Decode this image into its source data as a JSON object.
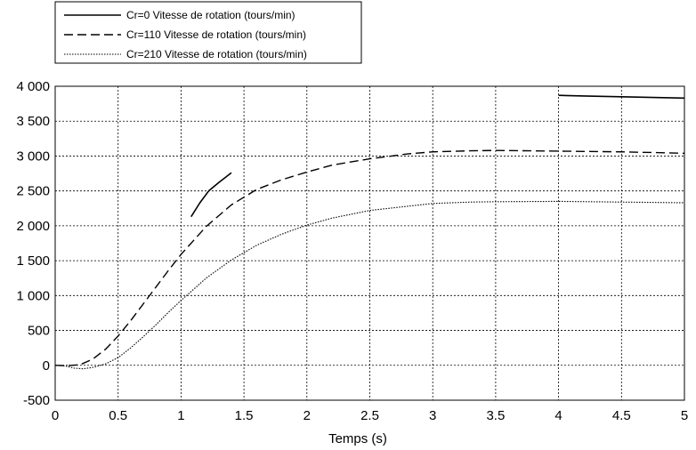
{
  "chart_data": {
    "type": "line",
    "title": "",
    "xlabel": "Temps (s)",
    "ylabel": "",
    "xlim": [
      0,
      5
    ],
    "ylim": [
      -500,
      4000
    ],
    "x_ticks": [
      0,
      0.5,
      1,
      1.5,
      2,
      2.5,
      3,
      3.5,
      4,
      4.5,
      5
    ],
    "x_tick_labels": [
      "0",
      "0.5",
      "1",
      "1.5",
      "2",
      "2.5",
      "3",
      "3.5",
      "4",
      "4.5",
      "5"
    ],
    "y_ticks": [
      -500,
      0,
      500,
      1000,
      1500,
      2000,
      2500,
      3000,
      3500,
      4000
    ],
    "y_tick_labels": [
      "-500",
      "0",
      "500",
      "1 000",
      "1 500",
      "2 000",
      "2 500",
      "3 000",
      "3 500",
      "4 000"
    ],
    "grid": true,
    "legend_position": "top-left outside",
    "series": [
      {
        "name": "Cr=0 Vitesse de rotation (tours/min)",
        "style": "solid",
        "color": "#000000",
        "segments": [
          [
            [
              1.08,
              2130
            ],
            [
              1.15,
              2330
            ],
            [
              1.22,
              2500
            ],
            [
              1.3,
              2620
            ],
            [
              1.4,
              2760
            ]
          ],
          [
            [
              4.0,
              3870
            ],
            [
              4.2,
              3860
            ],
            [
              4.5,
              3850
            ],
            [
              4.75,
              3840
            ],
            [
              5.0,
              3830
            ]
          ]
        ]
      },
      {
        "name": "Cr=110 Vitesse de rotation (tours/min)",
        "style": "dashed",
        "color": "#000000",
        "segments": [
          [
            [
              0.0,
              0
            ],
            [
              0.1,
              -5
            ],
            [
              0.2,
              10
            ],
            [
              0.3,
              90
            ],
            [
              0.4,
              230
            ],
            [
              0.5,
              420
            ],
            [
              0.6,
              640
            ],
            [
              0.7,
              880
            ],
            [
              0.8,
              1120
            ],
            [
              0.9,
              1360
            ],
            [
              1.0,
              1590
            ],
            [
              1.2,
              1990
            ],
            [
              1.4,
              2300
            ],
            [
              1.6,
              2520
            ],
            [
              1.8,
              2660
            ],
            [
              2.0,
              2770
            ],
            [
              2.2,
              2870
            ],
            [
              2.5,
              2960
            ],
            [
              2.8,
              3030
            ],
            [
              3.0,
              3060
            ],
            [
              3.3,
              3075
            ],
            [
              3.5,
              3080
            ],
            [
              4.0,
              3070
            ],
            [
              4.5,
              3060
            ],
            [
              5.0,
              3040
            ]
          ]
        ]
      },
      {
        "name": "Cr=210 Vitesse de rotation (tours/min)",
        "style": "dotted",
        "color": "#000000",
        "segments": [
          [
            [
              0.0,
              0
            ],
            [
              0.08,
              -10
            ],
            [
              0.15,
              -40
            ],
            [
              0.22,
              -50
            ],
            [
              0.3,
              -30
            ],
            [
              0.4,
              20
            ],
            [
              0.5,
              110
            ],
            [
              0.6,
              250
            ],
            [
              0.7,
              410
            ],
            [
              0.8,
              580
            ],
            [
              0.9,
              760
            ],
            [
              1.0,
              930
            ],
            [
              1.2,
              1250
            ],
            [
              1.4,
              1510
            ],
            [
              1.6,
              1720
            ],
            [
              1.8,
              1880
            ],
            [
              2.0,
              2010
            ],
            [
              2.2,
              2110
            ],
            [
              2.5,
              2220
            ],
            [
              2.8,
              2280
            ],
            [
              3.0,
              2320
            ],
            [
              3.3,
              2340
            ],
            [
              3.5,
              2345
            ],
            [
              4.0,
              2350
            ],
            [
              4.5,
              2340
            ],
            [
              5.0,
              2330
            ]
          ]
        ]
      }
    ]
  }
}
